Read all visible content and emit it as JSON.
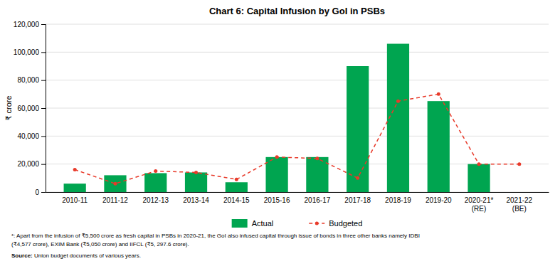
{
  "chart_data": {
    "type": "bar",
    "title": "Chart 6: Capital Infusion by GoI in PSBs",
    "ylabel": "₹ crore",
    "categories": [
      "2010-11",
      "2011-12",
      "2012-13",
      "2013-14",
      "2014-15",
      "2015-16",
      "2016-17",
      "2017-18",
      "2018-19",
      "2019-20",
      "2020-21*\n(RE)",
      "2021-22\n(BE)"
    ],
    "series": [
      {
        "name": "Actual",
        "type": "bar",
        "color": "#00A550",
        "values": [
          6000,
          12000,
          13500,
          14000,
          6990,
          25000,
          25000,
          90000,
          106000,
          65000,
          20000,
          0
        ]
      },
      {
        "name": "Budgeted",
        "type": "line",
        "color": "#E83A2A",
        "line_style": "dashed",
        "marker": "circle",
        "values": [
          16000,
          6000,
          15000,
          14000,
          9000,
          25000,
          24000,
          10000,
          65000,
          70000,
          20000,
          20000
        ]
      }
    ],
    "ylim": [
      0,
      120000
    ],
    "yticks": [
      0,
      {
        "value": 20000,
        "label": "20,000"
      },
      {
        "value": 40000,
        "label": "40,000"
      },
      {
        "value": 60000,
        "label": "60,000"
      },
      {
        "value": 80000,
        "label": "80,000"
      },
      {
        "value": 100000,
        "label": "100,000"
      },
      {
        "value": 120000,
        "label": "120,000"
      }
    ],
    "grid": true,
    "legend": "bottom",
    "annotations": [
      "*: Apart from the infusion of ₹5,500 crore as fresh capital in PSBs in 2020-21, the GoI also infused capital through issue of bonds in three other banks namely IDBI",
      "(₹4,577 crore), EXIM Bank (₹5,050 crore) and IIFCL (₹5, 297.6 crore).",
      "Source:",
      " Union budget documents of various years."
    ]
  }
}
